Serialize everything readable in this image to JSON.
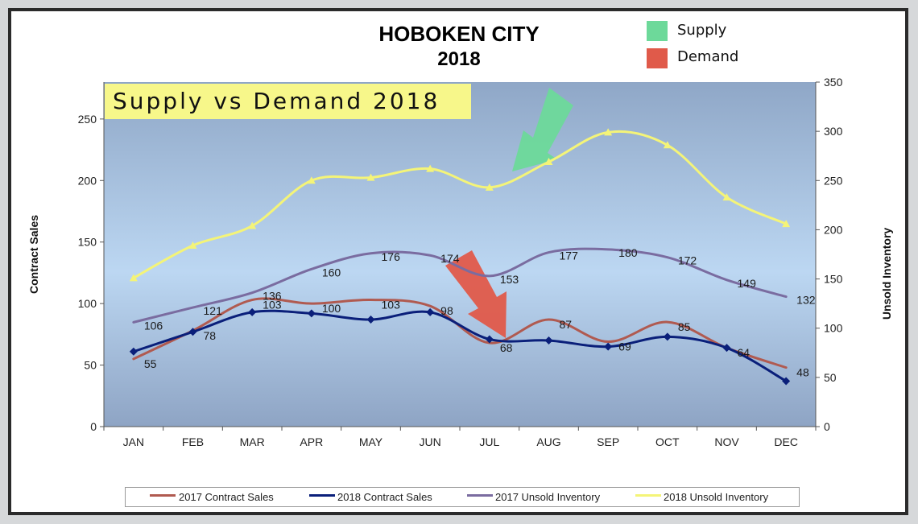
{
  "chart_data": {
    "type": "line",
    "title": "HOBOKEN CITY",
    "subtitle": "2018",
    "banner": "Supply vs Demand 2018",
    "key": [
      {
        "label": "Supply",
        "color": "#6dd99a"
      },
      {
        "label": "Demand",
        "color": "#e05a4a"
      }
    ],
    "categories": [
      "JAN",
      "FEB",
      "MAR",
      "APR",
      "MAY",
      "JUN",
      "JUL",
      "AUG",
      "SEP",
      "OCT",
      "NOV",
      "DEC"
    ],
    "left_axis": {
      "label": "Contract Sales",
      "range": [
        0,
        280
      ],
      "ticks": [
        0,
        50,
        100,
        150,
        200,
        250
      ]
    },
    "right_axis": {
      "label": "Unsold Inventory",
      "range": [
        0,
        350
      ],
      "ticks": [
        0,
        50,
        100,
        150,
        200,
        250,
        300,
        350
      ]
    },
    "series": [
      {
        "name": "2017 Contract Sales",
        "axis": "left",
        "color": "#b05a50",
        "values": [
          55,
          78,
          103,
          100,
          103,
          98,
          68,
          87,
          69,
          85,
          64,
          48
        ],
        "labels": [
          "55",
          "78",
          "103",
          "100",
          "103",
          "98",
          "68",
          "87",
          "69",
          "85",
          "64",
          "48"
        ]
      },
      {
        "name": "2018 Contract Sales",
        "axis": "left",
        "color": "#0a1f7a",
        "values": [
          61,
          77,
          93,
          92,
          87,
          93,
          71,
          70,
          65,
          73,
          64,
          37
        ]
      },
      {
        "name": "2017 Unsold Inventory",
        "axis": "right",
        "color": "#7a6ca0",
        "values": [
          106,
          121,
          136,
          160,
          176,
          174,
          153,
          177,
          180,
          172,
          149,
          132
        ],
        "labels": [
          "106",
          "121",
          "136",
          "160",
          "176",
          "174",
          "153",
          "177",
          "180",
          "172",
          "149",
          "132"
        ]
      },
      {
        "name": "2018 Unsold Inventory",
        "axis": "right",
        "color": "#f4f478",
        "values": [
          151,
          184,
          204,
          250,
          253,
          262,
          243,
          269,
          299,
          286,
          233,
          206
        ]
      }
    ],
    "grid": false,
    "legend_position": "bottom"
  }
}
